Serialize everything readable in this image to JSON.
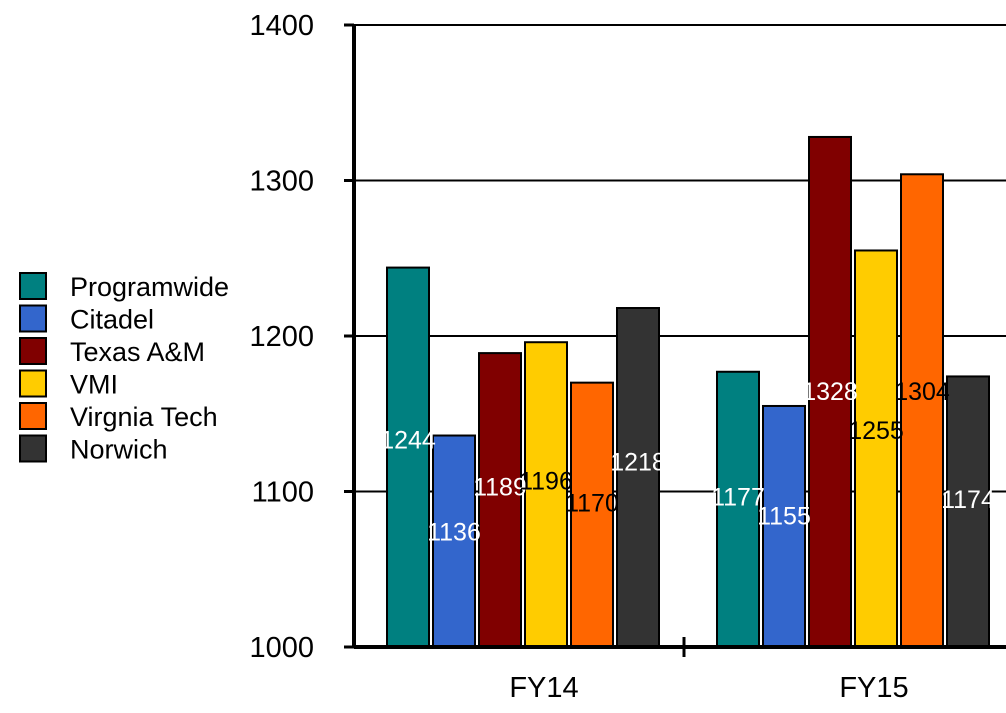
{
  "chart_data": {
    "type": "bar",
    "title": "",
    "xlabel": "",
    "ylabel": "",
    "ylim": [
      1000,
      1400
    ],
    "yticks": [
      1000,
      1100,
      1200,
      1300,
      1400
    ],
    "grid": true,
    "legend_position": "left",
    "categories": [
      "FY14",
      "FY15"
    ],
    "series": [
      {
        "name": "Programwide",
        "values": [
          1244,
          1177
        ],
        "color": "#008080",
        "label_color": "#ffffff"
      },
      {
        "name": "Citadel",
        "values": [
          1136,
          1155
        ],
        "color": "#3366cc",
        "label_color": "#ffffff"
      },
      {
        "name": "Texas A&M",
        "values": [
          1189,
          1328
        ],
        "color": "#800000",
        "label_color": "#ffffff"
      },
      {
        "name": "VMI",
        "values": [
          1196,
          1255
        ],
        "color": "#ffcc00",
        "label_color": "#000000"
      },
      {
        "name": "Virgnia Tech",
        "values": [
          1170,
          1304
        ],
        "color": "#ff6600",
        "label_color": "#000000"
      },
      {
        "name": "Norwich",
        "values": [
          1218,
          1174
        ],
        "color": "#333333",
        "label_color": "#ffffff"
      }
    ]
  }
}
